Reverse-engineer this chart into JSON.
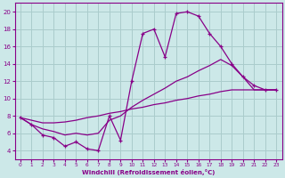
{
  "xlabel": "Windchill (Refroidissement éolien,°C)",
  "bg_color": "#cce8e8",
  "grid_color": "#aacccc",
  "line_color": "#880088",
  "xlim": [
    -0.5,
    23.5
  ],
  "ylim": [
    3.0,
    21.0
  ],
  "xticks": [
    0,
    1,
    2,
    3,
    4,
    5,
    6,
    7,
    8,
    9,
    10,
    11,
    12,
    13,
    14,
    15,
    16,
    17,
    18,
    19,
    20,
    21,
    22,
    23
  ],
  "yticks": [
    4,
    6,
    8,
    10,
    12,
    14,
    16,
    18,
    20
  ],
  "curve1_x": [
    0,
    1,
    2,
    3,
    4,
    5,
    6,
    7,
    8,
    9,
    10,
    11,
    12,
    13,
    14,
    15,
    16,
    17,
    18,
    19,
    20,
    21,
    22,
    23
  ],
  "curve1_y": [
    7.8,
    7.0,
    5.8,
    5.5,
    4.5,
    5.0,
    4.2,
    4.0,
    8.0,
    5.2,
    12.0,
    17.5,
    18.0,
    14.8,
    19.8,
    20.0,
    19.5,
    17.5,
    16.0,
    14.0,
    12.5,
    11.5,
    11.0,
    11.0
  ],
  "curve2_x": [
    0,
    1,
    2,
    3,
    4,
    5,
    6,
    7,
    8,
    9,
    10,
    11,
    12,
    13,
    14,
    15,
    16,
    17,
    18,
    19,
    20,
    21,
    22,
    23
  ],
  "curve2_y": [
    7.8,
    7.0,
    6.5,
    6.2,
    5.8,
    6.0,
    5.8,
    6.0,
    7.5,
    8.0,
    9.0,
    9.8,
    10.5,
    11.2,
    12.0,
    12.5,
    13.2,
    13.8,
    14.5,
    13.8,
    12.5,
    11.0,
    11.0,
    11.0
  ],
  "curve3_x": [
    0,
    1,
    2,
    3,
    4,
    5,
    6,
    7,
    8,
    9,
    10,
    11,
    12,
    13,
    14,
    15,
    16,
    17,
    18,
    19,
    20,
    21,
    22,
    23
  ],
  "curve3_y": [
    7.8,
    7.5,
    7.2,
    7.2,
    7.3,
    7.5,
    7.8,
    8.0,
    8.3,
    8.5,
    8.8,
    9.0,
    9.3,
    9.5,
    9.8,
    10.0,
    10.3,
    10.5,
    10.8,
    11.0,
    11.0,
    11.0,
    11.0,
    11.0
  ]
}
